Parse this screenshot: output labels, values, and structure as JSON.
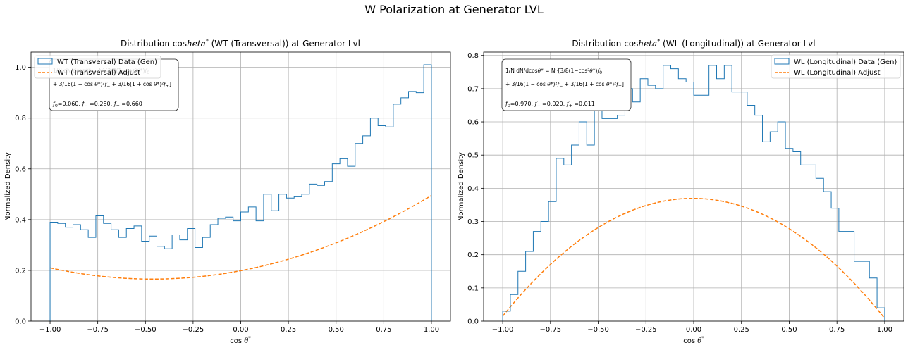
{
  "figure": {
    "suptitle": "W Polarization at Generator LVL"
  },
  "chart_data": [
    {
      "type": "histogram",
      "title": "Distribution cos heta* (WT (Transversal)) at Generator Lvl",
      "xlabel": "cos θ*",
      "ylabel": "Normalized Density",
      "xlim": [
        -1.1,
        1.1
      ],
      "ylim": [
        0,
        1.06
      ],
      "xticks": [
        -1.0,
        -0.75,
        -0.5,
        -0.25,
        0.0,
        0.25,
        0.5,
        0.75,
        1.0
      ],
      "xtick_labels": [
        "−1.00",
        "−0.75",
        "−0.50",
        "−0.25",
        "0.00",
        "0.25",
        "0.50",
        "0.75",
        "1.00"
      ],
      "yticks": [
        0.0,
        0.2,
        0.4,
        0.6,
        0.8,
        1.0
      ],
      "ytick_labels": [
        "0.0",
        "0.2",
        "0.4",
        "0.6",
        "0.8",
        "1.0"
      ],
      "grid": true,
      "legend": {
        "placement": "upper-left",
        "entries": [
          "WT (Transversal) Data (Gen)",
          "WT (Transversal) Adjust"
        ]
      },
      "annotation": {
        "placement": "upper-left",
        "lines": [
          "1/N dN/dcosθ* = N′·[3/8(1−cos²θ*)f₀",
          "+ 3/16(1−cos θ*)²f₋ + 3/16(1+cos θ*)²f₊]",
          "f₀=0.060, f₋=0.280, f₊=0.660"
        ]
      },
      "colors": {
        "hist": "#1f77b4",
        "fit": "#ff7f0e"
      },
      "bins": {
        "min": -1.0,
        "max": 1.0,
        "count": 50
      },
      "series": [
        {
          "name": "WT (Transversal) Data (Gen)",
          "kind": "step-histogram",
          "values": [
            0.39,
            0.385,
            0.37,
            0.38,
            0.36,
            0.33,
            0.415,
            0.385,
            0.36,
            0.33,
            0.365,
            0.375,
            0.315,
            0.335,
            0.295,
            0.285,
            0.34,
            0.32,
            0.365,
            0.29,
            0.33,
            0.38,
            0.405,
            0.41,
            0.395,
            0.43,
            0.45,
            0.395,
            0.5,
            0.435,
            0.5,
            0.485,
            0.49,
            0.5,
            0.54,
            0.535,
            0.55,
            0.62,
            0.64,
            0.61,
            0.7,
            0.73,
            0.8,
            0.77,
            0.765,
            0.855,
            0.88,
            0.905,
            0.9,
            1.01
          ]
        },
        {
          "name": "WT (Transversal) Adjust",
          "kind": "fit-curve",
          "params": {
            "f0": 0.06,
            "fm": 0.28,
            "fp": 0.66
          }
        }
      ]
    },
    {
      "type": "histogram",
      "title": "Distribution cos heta* (WL (Longitudinal)) at Generator Lvl",
      "xlabel": "cos θ*",
      "ylabel": "Normalized Density",
      "xlim": [
        -1.1,
        1.1
      ],
      "ylim": [
        0,
        0.81
      ],
      "xticks": [
        -1.0,
        -0.75,
        -0.5,
        -0.25,
        0.0,
        0.25,
        0.5,
        0.75,
        1.0
      ],
      "xtick_labels": [
        "−1.00",
        "−0.75",
        "−0.50",
        "−0.25",
        "0.00",
        "0.25",
        "0.50",
        "0.75",
        "1.00"
      ],
      "yticks": [
        0.0,
        0.1,
        0.2,
        0.3,
        0.4,
        0.5,
        0.6,
        0.7,
        0.8
      ],
      "ytick_labels": [
        "0.0",
        "0.1",
        "0.2",
        "0.3",
        "0.4",
        "0.5",
        "0.6",
        "0.7",
        "0.8"
      ],
      "grid": true,
      "legend": {
        "placement": "upper-right",
        "entries": [
          "WL (Longitudinal) Data (Gen)",
          "WL (Longitudinal) Adjust"
        ]
      },
      "annotation": {
        "placement": "upper-left",
        "lines": [
          "1/N dN/dcosθ* = N′·[3/8(1−cos²θ*)f₀",
          "+ 3/16(1−cos θ*)²f₋ + 3/16(1+cos θ*)²f₊]",
          "f₀=0.970, f₋=0.020, f₊=0.011"
        ]
      },
      "colors": {
        "hist": "#1f77b4",
        "fit": "#ff7f0e"
      },
      "bins": {
        "min": -1.0,
        "max": 1.0,
        "count": 50
      },
      "series": [
        {
          "name": "WL (Longitudinal) Data (Gen)",
          "kind": "step-histogram",
          "values": [
            0.03,
            0.08,
            0.15,
            0.21,
            0.27,
            0.3,
            0.36,
            0.49,
            0.47,
            0.53,
            0.6,
            0.53,
            0.64,
            0.61,
            0.61,
            0.62,
            0.7,
            0.66,
            0.73,
            0.71,
            0.7,
            0.77,
            0.76,
            0.73,
            0.72,
            0.68,
            0.68,
            0.77,
            0.73,
            0.77,
            0.69,
            0.69,
            0.65,
            0.62,
            0.54,
            0.57,
            0.6,
            0.52,
            0.51,
            0.47,
            0.47,
            0.43,
            0.39,
            0.34,
            0.27,
            0.27,
            0.18,
            0.18,
            0.13,
            0.04
          ]
        },
        {
          "name": "WL (Longitudinal) Adjust",
          "kind": "fit-curve",
          "params": {
            "f0": 0.97,
            "fm": 0.02,
            "fp": 0.011
          }
        }
      ]
    }
  ]
}
